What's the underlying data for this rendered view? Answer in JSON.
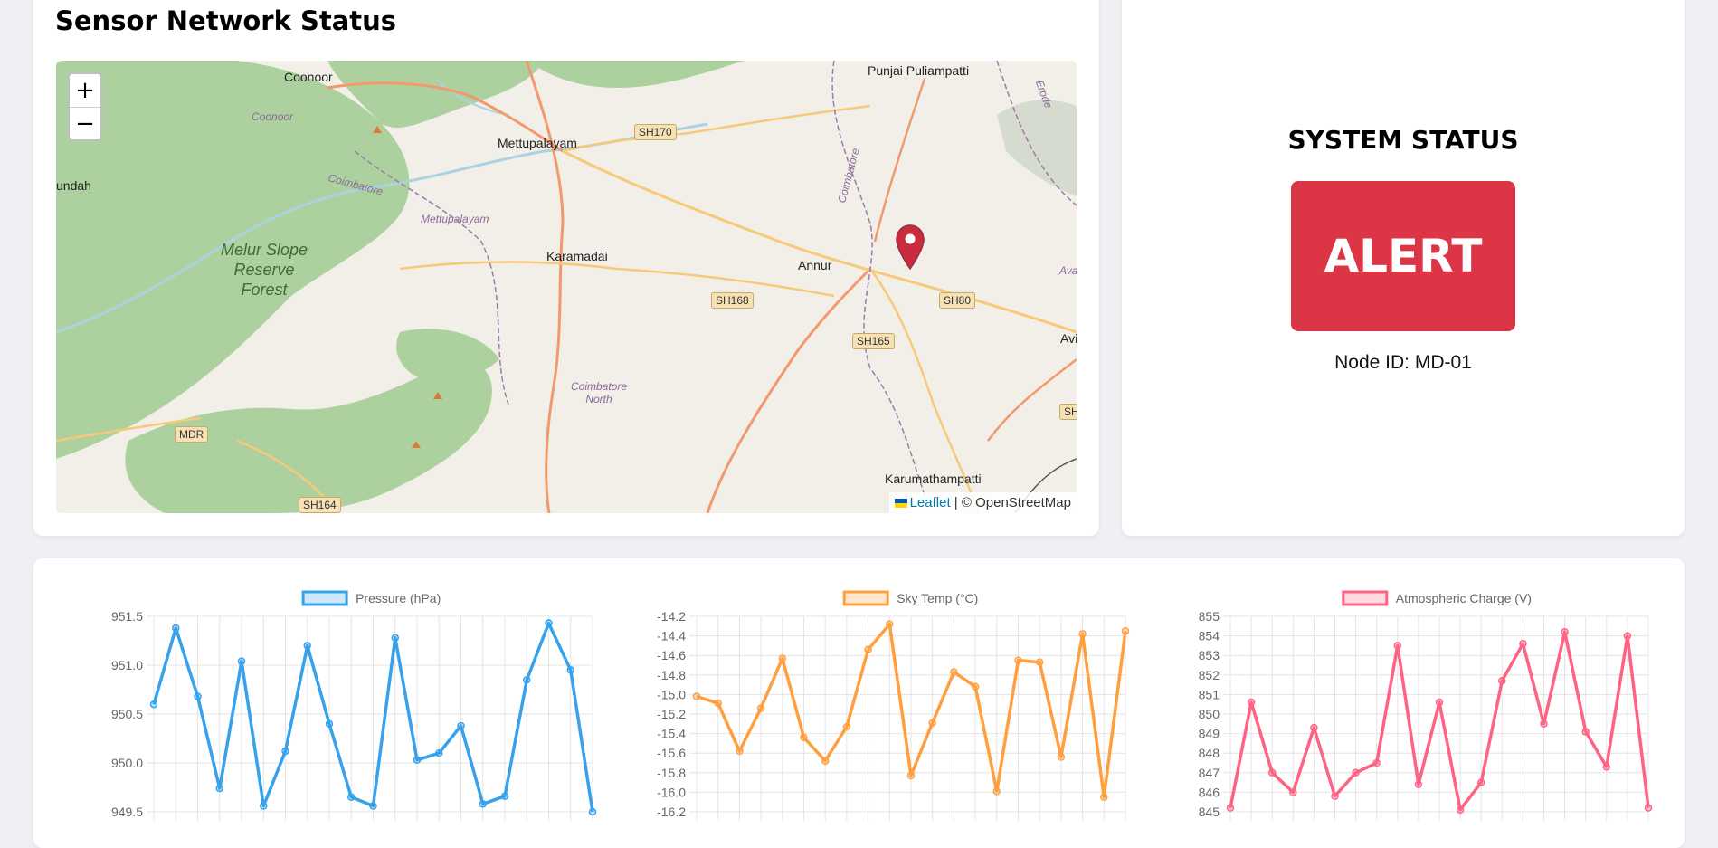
{
  "page": {
    "title": "Sensor Network Status"
  },
  "map": {
    "zoom_in_label": "+",
    "zoom_out_label": "−",
    "attribution": {
      "leaflet": "Leaflet",
      "separator": " | © ",
      "osm": "OpenStreetMap"
    },
    "places": {
      "coonoor": "Coonoor",
      "coonoor_italic": "Coonoor",
      "punjai": "Punjai Puliampatti",
      "mettupalayam": "Mettupalayam",
      "mettupalayam_italic": "Mettupalayam",
      "coimbatore_italic": "Coimbatore",
      "coimbatore_north": "Coimbatore North",
      "karamadai": "Karamadai",
      "annur": "Annur",
      "karumathampatti": "Karumathampatti",
      "melur": "Melur Slope Reserve Forest",
      "undah": "undah",
      "erode": "Erode",
      "avi": "Avi",
      "ava": "Ava"
    },
    "roads": {
      "sh170": "SH170",
      "sh168": "SH168",
      "sh80": "SH80",
      "sh165": "SH165",
      "mdr": "MDR",
      "sh164": "SH164",
      "sh_edge": "SH"
    }
  },
  "status": {
    "title": "SYSTEM STATUS",
    "state": "ALERT",
    "node_label": "Node ID: MD-01"
  },
  "colors": {
    "alert": "#dc3545",
    "pressure": "#36a2eb",
    "sky": "#ff9f40",
    "charge": "#ff6384"
  },
  "chart_data": [
    {
      "type": "line",
      "series": [
        {
          "name": "Pressure (hPa)",
          "values": [
            950.6,
            951.38,
            950.68,
            949.74,
            951.04,
            949.56,
            950.12,
            951.2,
            950.4,
            949.65,
            949.56,
            951.28,
            950.03,
            950.1,
            950.38,
            949.58,
            949.66,
            950.85,
            951.43,
            950.95,
            949.5
          ]
        }
      ],
      "ylim": [
        949.5,
        951.5
      ],
      "yticks": [
        "951.5",
        "951.0",
        "950.5",
        "950.0",
        "949.5"
      ],
      "grid": true,
      "legend": "top"
    },
    {
      "type": "line",
      "series": [
        {
          "name": "Sky Temp (°C)",
          "values": [
            -15.02,
            -15.09,
            -15.58,
            -15.14,
            -14.63,
            -15.44,
            -15.68,
            -15.33,
            -14.54,
            -14.28,
            -15.83,
            -15.29,
            -14.77,
            -14.92,
            -15.99,
            -14.65,
            -14.67,
            -15.64,
            -14.38,
            -16.05,
            -14.35
          ]
        }
      ],
      "ylim": [
        -16.2,
        -14.2
      ],
      "yticks": [
        "-14.2",
        "-14.4",
        "-14.6",
        "-14.8",
        "-15.0",
        "-15.2",
        "-15.4",
        "-15.6",
        "-15.8",
        "-16.0",
        "-16.2"
      ],
      "grid": true,
      "legend": "top"
    },
    {
      "type": "line",
      "series": [
        {
          "name": "Atmospheric Charge (V)",
          "values": [
            845.2,
            850.6,
            847.0,
            846.0,
            849.3,
            845.8,
            847.0,
            847.5,
            853.5,
            846.4,
            850.6,
            845.1,
            846.5,
            851.7,
            853.6,
            849.5,
            854.2,
            849.1,
            847.3,
            854.0,
            845.2
          ]
        }
      ],
      "ylim": [
        845,
        855
      ],
      "yticks": [
        "855",
        "854",
        "853",
        "852",
        "851",
        "850",
        "849",
        "848",
        "847",
        "846",
        "845"
      ],
      "grid": true,
      "legend": "top"
    }
  ]
}
